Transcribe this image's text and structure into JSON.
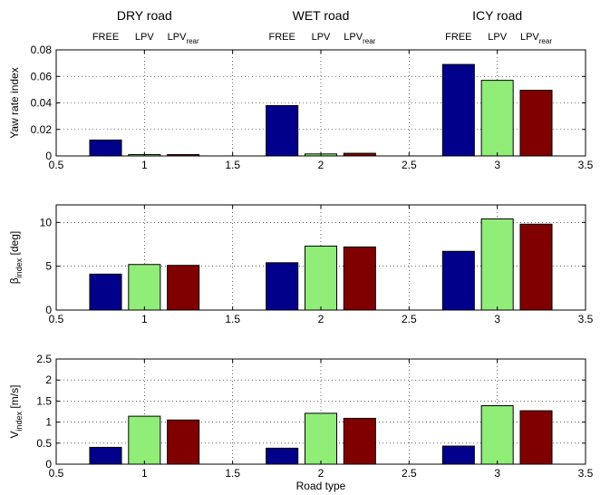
{
  "chart_data": {
    "type": "bar",
    "xlabel": "Road type",
    "group_labels": [
      {
        "x": 1,
        "label": "DRY road"
      },
      {
        "x": 2,
        "label": "WET road"
      },
      {
        "x": 3,
        "label": "ICY road"
      }
    ],
    "series_labels": [
      {
        "name": "FREE",
        "sub": ""
      },
      {
        "name": "LPV",
        "sub": ""
      },
      {
        "name": "LPV",
        "sub": "rear"
      }
    ],
    "series_colors": [
      "#00008b",
      "#90ee78",
      "#800000"
    ],
    "categories": [
      1,
      2,
      3
    ],
    "bar_offsets": [
      -0.22,
      0,
      0.22
    ],
    "bar_width": 0.18,
    "xlim": [
      0.5,
      3.5
    ],
    "xticks": [
      0.5,
      1,
      1.5,
      2,
      2.5,
      3,
      3.5
    ],
    "xtick_labels": [
      "0.5",
      "1",
      "1.5",
      "2",
      "2.5",
      "3",
      "3.5"
    ],
    "grid": true,
    "subplots": [
      {
        "ylabel": "Yaw rate index",
        "ylabel_sub": "",
        "ylabel_suffix": "",
        "ylim": [
          0,
          0.08
        ],
        "yticks": [
          0,
          0.02,
          0.04,
          0.06,
          0.08
        ],
        "ytick_labels": [
          "0",
          "0.02",
          "0.04",
          "0.06",
          "0.08"
        ],
        "series": [
          {
            "name": "FREE",
            "values": [
              0.012,
              0.038,
              0.069
            ]
          },
          {
            "name": "LPV",
            "values": [
              0.001,
              0.0015,
              0.057
            ]
          },
          {
            "name": "LPVrear",
            "values": [
              0.001,
              0.002,
              0.0495
            ]
          }
        ]
      },
      {
        "ylabel": "β",
        "ylabel_sub": "index",
        "ylabel_suffix": " [deg]",
        "ylim": [
          0,
          12
        ],
        "yticks": [
          0,
          5,
          10
        ],
        "ytick_labels": [
          "0",
          "5",
          "10"
        ],
        "series": [
          {
            "name": "FREE",
            "values": [
              4.1,
              5.4,
              6.7
            ]
          },
          {
            "name": "LPV",
            "values": [
              5.2,
              7.3,
              10.4
            ]
          },
          {
            "name": "LPVrear",
            "values": [
              5.1,
              7.2,
              9.8
            ]
          }
        ]
      },
      {
        "ylabel": "V",
        "ylabel_sub": "index",
        "ylabel_suffix": " [m/s]",
        "ylim": [
          0,
          2.5
        ],
        "yticks": [
          0,
          0.5,
          1,
          1.5,
          2,
          2.5
        ],
        "ytick_labels": [
          "0",
          "0.5",
          "1",
          "1.5",
          "2",
          "2.5"
        ],
        "series": [
          {
            "name": "FREE",
            "values": [
              0.4,
              0.38,
              0.43
            ]
          },
          {
            "name": "LPV",
            "values": [
              1.14,
              1.21,
              1.39
            ]
          },
          {
            "name": "LPVrear",
            "values": [
              1.05,
              1.09,
              1.27
            ]
          }
        ]
      }
    ]
  }
}
